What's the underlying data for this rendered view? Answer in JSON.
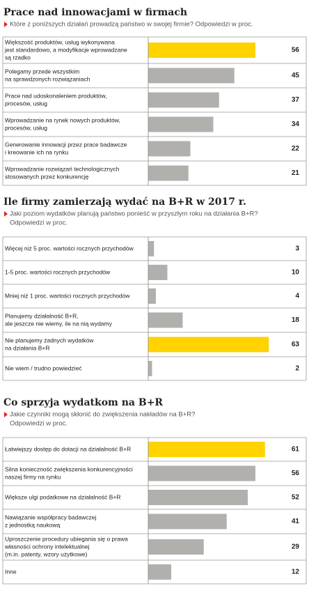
{
  "chart_data": [
    {
      "type": "bar",
      "title": "Prace nad innowacjami w firmach",
      "subtitle": [
        "Które z poniższych działań prowadzą państwo w swojej firmie? Odpowiedzi w proc."
      ],
      "categories": [
        [
          "Większość produktów, usług wykonywana",
          "jest standardowo, a modyfikacje wprowadzane",
          "są rzadko"
        ],
        [
          "Polegamy przede wszystkim",
          "na sprawdzonych rozwiązaniach"
        ],
        [
          "Prace nad udoskonaleniem produktów,",
          "procesów, usług"
        ],
        [
          "Wprowadzanie na rynek nowych produktów,",
          "procesów, usług"
        ],
        [
          "Generowanie innowacji przez prace badawcze",
          "i kreowanie ich na rynku"
        ],
        [
          "Wprowadzanie rozwiązań technologicznych",
          "stosowanych przez konkurencję"
        ]
      ],
      "values": [
        56,
        45,
        37,
        34,
        22,
        21
      ],
      "colors": [
        "#ffd200",
        "#b1b0ad",
        "#b1b0ad",
        "#b1b0ad",
        "#b1b0ad",
        "#b1b0ad"
      ]
    },
    {
      "type": "bar",
      "title": "Ile firmy zamierzają wydać na B+R w 2017 r.",
      "subtitle": [
        "Jaki poziom wydatków planują państwo ponieść w przyszłym roku na działania B+R?",
        "Odpowiedzi w proc."
      ],
      "categories": [
        [
          "Więcej niż 5 proc. wartości rocznych przychodów"
        ],
        [
          "1-5 proc. wartości rocznych przychodów"
        ],
        [
          "Mniej niż 1 proc. wartości rocznych przychodów"
        ],
        [
          "Planujemy działalność B+R,",
          "ale jeszcze nie wiemy, ile na nią wydamy"
        ],
        [
          "Nie planujemy żadnych wydatków",
          "na działania B+R"
        ],
        [
          "Nie wiem / trudno powiedzieć"
        ]
      ],
      "values": [
        3,
        10,
        4,
        18,
        63,
        2
      ],
      "colors": [
        "#b1b0ad",
        "#b1b0ad",
        "#b1b0ad",
        "#b1b0ad",
        "#ffd200",
        "#b1b0ad"
      ]
    },
    {
      "type": "bar",
      "title": "Co sprzyja wydatkom na B+R",
      "subtitle": [
        "Jakie czynniki mogą skłonić do zwiększenia nakładów na B+R?",
        "Odpowiedzi w proc."
      ],
      "categories": [
        [
          "Łatwiejszy dostęp do dotacji na działalność B+R"
        ],
        [
          "Silna konieczność zwiększenia konkurencyjności",
          "naszej firmy na rynku"
        ],
        [
          "Większe ulgi podatkowe na działalność B+R"
        ],
        [
          "Nawiązanie współpracy badawczej",
          "z jednostką naukową"
        ],
        [
          "Uproszczenie procedury ubiegania się o prawa",
          "własności ochrony intelektualnej",
          "(m.in. patenty, wzory użytkowe)"
        ],
        [
          "Inne"
        ]
      ],
      "values": [
        61,
        56,
        52,
        41,
        29,
        12
      ],
      "colors": [
        "#ffd200",
        "#b1b0ad",
        "#b1b0ad",
        "#b1b0ad",
        "#b1b0ad",
        "#b1b0ad"
      ]
    }
  ]
}
